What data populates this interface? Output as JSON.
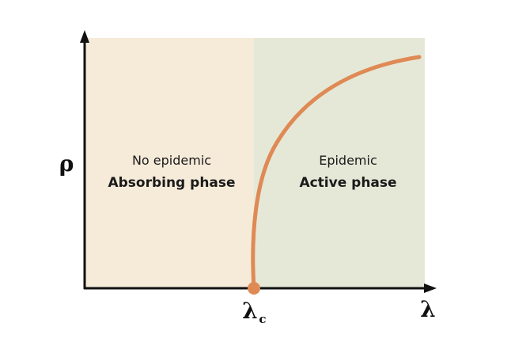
{
  "axes": {
    "y_symbol": "ρ",
    "x_symbol": "λ",
    "critical_point": {
      "symbol": "λ",
      "subscript": "c"
    }
  },
  "regions": [
    {
      "line1": "No epidemic",
      "line2": "Absorbing phase",
      "color": "#f6ebd9"
    },
    {
      "line1": "Epidemic",
      "line2": "Active phase",
      "color": "#e6e8d7"
    }
  ],
  "colors": {
    "curve": "#df8a55",
    "axis": "#111111"
  }
}
